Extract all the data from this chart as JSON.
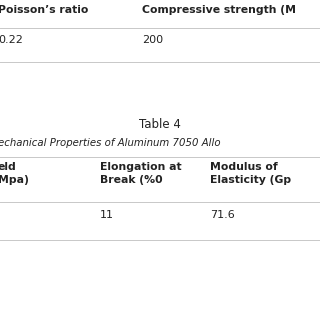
{
  "background_color": "#ffffff",
  "table1_partial": {
    "headers": [
      "Poisson’s ratio",
      "Compressive strength (M"
    ],
    "row": [
      "0.22",
      "200"
    ]
  },
  "table2_title": "Table 4",
  "table2_subtitle": "echanical Properties of Aluminum 7050 Allo",
  "table2": {
    "headers_line1": [
      "eld",
      "Elongation at",
      "Modulus of"
    ],
    "headers_line2": [
      "Mpa)",
      "Break (%0",
      "Elasticity (Gp"
    ],
    "row": [
      "",
      "11",
      "71.6"
    ]
  },
  "text_color": "#222222",
  "line_color": "#c8c8c8",
  "header_fontsize": 7.8,
  "data_fontsize": 8.0,
  "title_fontsize": 8.5
}
